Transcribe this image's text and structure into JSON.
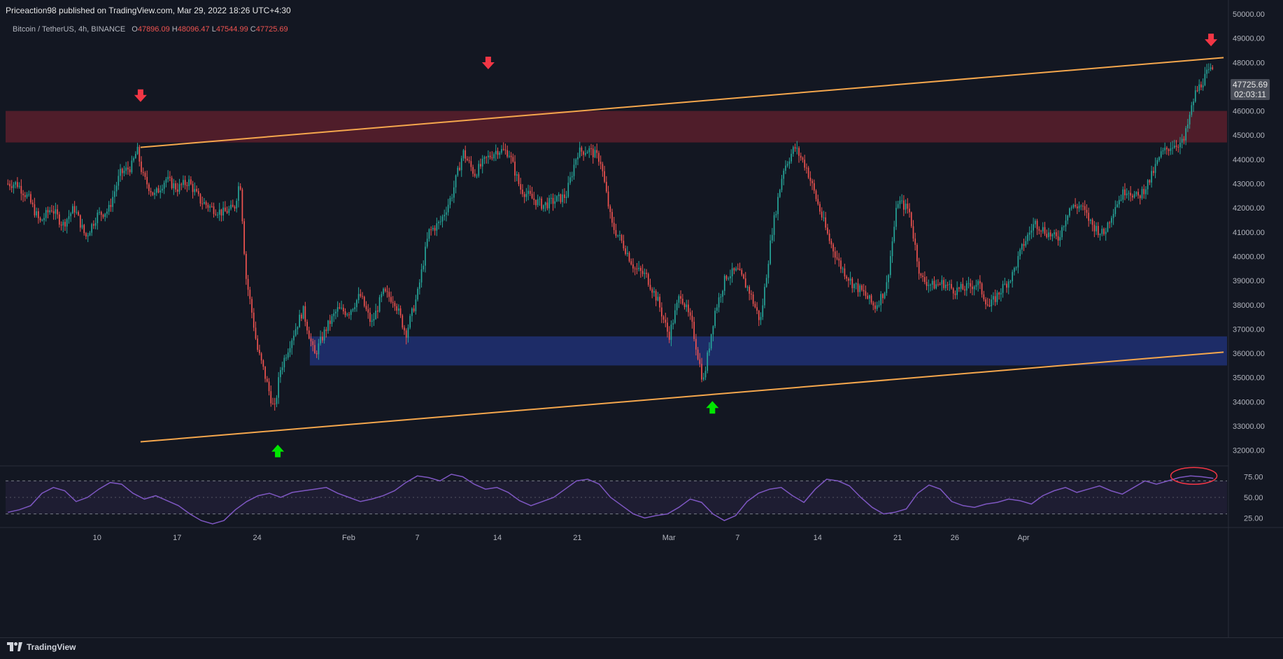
{
  "header": {
    "published": "Priceaction98 published on TradingView.com, Mar 29, 2022 18:26 UTC+4:30"
  },
  "legend": {
    "symbol": "Bitcoin / TetherUS, 4h, BINANCE",
    "o_label": "O",
    "o_value": "47896.09",
    "h_label": "H",
    "h_value": "48096.47",
    "l_label": "L",
    "l_value": "47544.99",
    "c_label": "C",
    "c_value": "47725.69"
  },
  "price_tag": {
    "price": "47725.69",
    "countdown": "02:03:11"
  },
  "footer": {
    "brand": "TradingView",
    "logo_icon": "tradingview-logo-icon"
  },
  "colors": {
    "background": "#131722",
    "up": "#26a69a",
    "down": "#ef5350",
    "trendline": "#f5a74d",
    "resistance_zone": "#5a1f2b",
    "support_zone": "#1e2d6b",
    "rsi_line": "#7e57c2",
    "arrow_down": "#f23645",
    "arrow_up": "#00e600"
  },
  "chart_data": [
    {
      "type": "candlestick",
      "title": "Bitcoin / TetherUS, 4h, BINANCE",
      "ylim": [
        31500,
        50000
      ],
      "y_ticks": [
        "32000.00",
        "33000.00",
        "34000.00",
        "35000.00",
        "36000.00",
        "37000.00",
        "38000.00",
        "39000.00",
        "40000.00",
        "41000.00",
        "42000.00",
        "43000.00",
        "44000.00",
        "45000.00",
        "46000.00",
        "47000.00",
        "48000.00",
        "49000.00",
        "50000.00"
      ],
      "x_ticks": [
        "10",
        "17",
        "24",
        "Feb",
        "7",
        "14",
        "21",
        "Mar",
        "7",
        "14",
        "21",
        "26",
        "Apr"
      ],
      "x_tick_days": [
        10,
        17,
        24,
        32,
        38,
        45,
        52,
        60,
        66,
        73,
        80,
        85,
        91
      ],
      "day_range": [
        2,
        90
      ],
      "anchors": [
        [
          3,
          43000
        ],
        [
          4,
          42400
        ],
        [
          5,
          41400
        ],
        [
          6,
          42000
        ],
        [
          7,
          41300
        ],
        [
          8,
          42000
        ],
        [
          9,
          40800
        ],
        [
          10,
          41700
        ],
        [
          11,
          41900
        ],
        [
          12,
          43400
        ],
        [
          13,
          43700
        ],
        [
          13.5,
          44400
        ],
        [
          14,
          43300
        ],
        [
          15,
          42500
        ],
        [
          16,
          43200
        ],
        [
          17,
          42800
        ],
        [
          18,
          43100
        ],
        [
          19,
          42300
        ],
        [
          20,
          42000
        ],
        [
          21,
          41800
        ],
        [
          22,
          42000
        ],
        [
          22.5,
          43200
        ],
        [
          23,
          39200
        ],
        [
          23.5,
          37800
        ],
        [
          24,
          36200
        ],
        [
          24.5,
          35400
        ],
        [
          25,
          34500
        ],
        [
          25.5,
          33600
        ],
        [
          26,
          35300
        ],
        [
          27,
          36600
        ],
        [
          28,
          37800
        ],
        [
          29,
          35900
        ],
        [
          30,
          37000
        ],
        [
          31,
          37800
        ],
        [
          32,
          37700
        ],
        [
          33,
          38400
        ],
        [
          34,
          37200
        ],
        [
          35,
          38500
        ],
        [
          36,
          38200
        ],
        [
          37,
          36800
        ],
        [
          38,
          38400
        ],
        [
          39,
          41000
        ],
        [
          40,
          41400
        ],
        [
          41,
          42500
        ],
        [
          42,
          44300
        ],
        [
          43,
          43400
        ],
        [
          44,
          44000
        ],
        [
          45,
          44400
        ],
        [
          46,
          44300
        ],
        [
          47,
          42800
        ],
        [
          48,
          42400
        ],
        [
          49,
          42100
        ],
        [
          50,
          42300
        ],
        [
          51,
          42500
        ],
        [
          52,
          44300
        ],
        [
          53,
          44400
        ],
        [
          54,
          44000
        ],
        [
          55,
          41300
        ],
        [
          56,
          40500
        ],
        [
          57,
          39500
        ],
        [
          58,
          39200
        ],
        [
          59,
          38200
        ],
        [
          60,
          36700
        ],
        [
          61,
          38500
        ],
        [
          62,
          37200
        ],
        [
          63,
          34800
        ],
        [
          64,
          37700
        ],
        [
          65,
          39200
        ],
        [
          66,
          39400
        ],
        [
          67,
          38600
        ],
        [
          68,
          37300
        ],
        [
          69,
          41000
        ],
        [
          70,
          43600
        ],
        [
          71,
          44500
        ],
        [
          72,
          43700
        ],
        [
          73,
          42200
        ],
        [
          74,
          40700
        ],
        [
          75,
          39600
        ],
        [
          76,
          38900
        ],
        [
          77,
          38500
        ],
        [
          78,
          37900
        ],
        [
          79,
          38700
        ],
        [
          80,
          42300
        ],
        [
          81,
          41900
        ],
        [
          82,
          39100
        ],
        [
          83,
          38800
        ],
        [
          84,
          38900
        ],
        [
          85,
          38600
        ],
        [
          86,
          38700
        ],
        [
          87,
          38900
        ],
        [
          88,
          37900
        ],
        [
          89,
          38600
        ],
        [
          90,
          39200
        ],
        [
          91,
          40500
        ],
        [
          92,
          41400
        ],
        [
          93,
          41000
        ],
        [
          94,
          40700
        ],
        [
          95,
          42000
        ],
        [
          96,
          42100
        ],
        [
          97,
          41300
        ],
        [
          98,
          40900
        ],
        [
          99,
          42100
        ],
        [
          100,
          42800
        ],
        [
          101,
          42400
        ],
        [
          102,
          43100
        ],
        [
          103,
          44200
        ],
        [
          104,
          44600
        ],
        [
          105,
          44700
        ],
        [
          106,
          46700
        ],
        [
          107,
          47500
        ],
        [
          107.6,
          47725.69
        ]
      ],
      "last_close": 47725.69,
      "resistance_zone": [
        44700,
        46000
      ],
      "support_zone": [
        35500,
        36700
      ],
      "upper_trendline": {
        "from": [
          13.8,
          44500
        ],
        "to": [
          108.5,
          48200
        ]
      },
      "lower_trendline": {
        "from": [
          13.8,
          32350
        ],
        "to": [
          108.5,
          36050
        ]
      },
      "down_arrows": [
        [
          13.8,
          46600
        ],
        [
          44.2,
          47950
        ],
        [
          107.4,
          48900
        ]
      ],
      "up_arrows": [
        [
          25.8,
          32000
        ],
        [
          63.8,
          33800
        ]
      ]
    },
    {
      "type": "line",
      "title": "",
      "ylim": [
        17,
        83
      ],
      "y_ticks": [
        "25.00",
        "50.00",
        "75.00"
      ],
      "levels": [
        70,
        30
      ],
      "values": [
        32,
        35,
        40,
        55,
        62,
        58,
        45,
        50,
        60,
        68,
        66,
        55,
        48,
        52,
        46,
        40,
        30,
        22,
        18,
        22,
        35,
        45,
        52,
        55,
        50,
        56,
        58,
        60,
        62,
        55,
        50,
        45,
        48,
        52,
        58,
        68,
        76,
        74,
        70,
        78,
        75,
        66,
        60,
        62,
        56,
        46,
        40,
        45,
        50,
        60,
        70,
        72,
        66,
        50,
        40,
        30,
        25,
        28,
        30,
        38,
        48,
        44,
        30,
        22,
        28,
        45,
        55,
        60,
        62,
        52,
        44,
        60,
        72,
        70,
        64,
        50,
        38,
        30,
        32,
        36,
        55,
        65,
        60,
        45,
        40,
        38,
        42,
        44,
        48,
        46,
        42,
        52,
        58,
        62,
        56,
        60,
        64,
        58,
        54,
        62,
        70,
        66,
        70,
        74,
        76,
        75,
        73
      ]
    }
  ]
}
